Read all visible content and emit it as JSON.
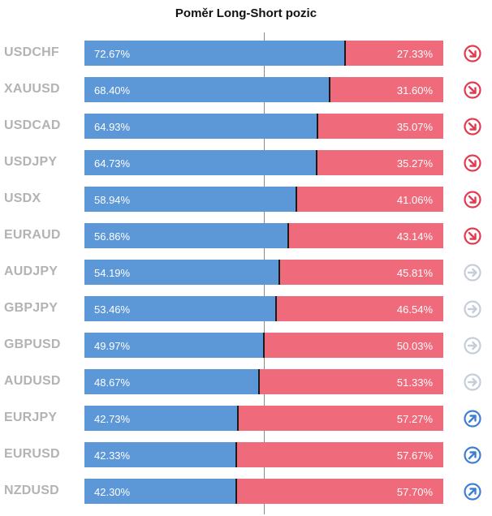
{
  "title": "Poměr Long-Short pozic",
  "colors": {
    "long": "#5c97d8",
    "short": "#ef6a7a",
    "divider": "#1b1b1b",
    "signal_down": "#e23b4f",
    "signal_neutral": "#c7cdd8",
    "signal_up": "#3f7fd1"
  },
  "chart_data": {
    "type": "bar",
    "orientation": "horizontal-stacked-100",
    "title": "Poměr Long-Short pozic",
    "categories": [
      "USDCHF",
      "XAUUSD",
      "USDCAD",
      "USDJPY",
      "USDX",
      "EURAUD",
      "AUDJPY",
      "GBPJPY",
      "GBPUSD",
      "AUDUSD",
      "EURJPY",
      "EURUSD",
      "NZDUSD"
    ],
    "series": [
      {
        "values": [
          72.67,
          68.4,
          64.93,
          64.73,
          58.94,
          56.86,
          54.19,
          53.46,
          49.97,
          48.67,
          42.73,
          42.33,
          42.3
        ]
      },
      {
        "values": [
          27.33,
          31.6,
          35.07,
          35.27,
          41.06,
          43.14,
          45.81,
          46.54,
          50.03,
          51.33,
          57.27,
          57.67,
          57.7
        ]
      }
    ],
    "long_labels": [
      "72.67%",
      "68.40%",
      "64.93%",
      "64.73%",
      "58.94%",
      "56.86%",
      "54.19%",
      "53.46%",
      "49.97%",
      "48.67%",
      "42.73%",
      "42.33%",
      "42.30%"
    ],
    "short_labels": [
      "27.33%",
      "31.60%",
      "35.07%",
      "35.27%",
      "41.06%",
      "43.14%",
      "45.81%",
      "46.54%",
      "50.03%",
      "51.33%",
      "57.27%",
      "57.67%",
      "57.70%"
    ],
    "signals": [
      "down",
      "down",
      "down",
      "down",
      "down",
      "down",
      "neutral",
      "neutral",
      "neutral",
      "neutral",
      "up",
      "up",
      "up"
    ],
    "xlim": [
      0,
      100
    ],
    "reference_line": 50,
    "grid": false
  }
}
